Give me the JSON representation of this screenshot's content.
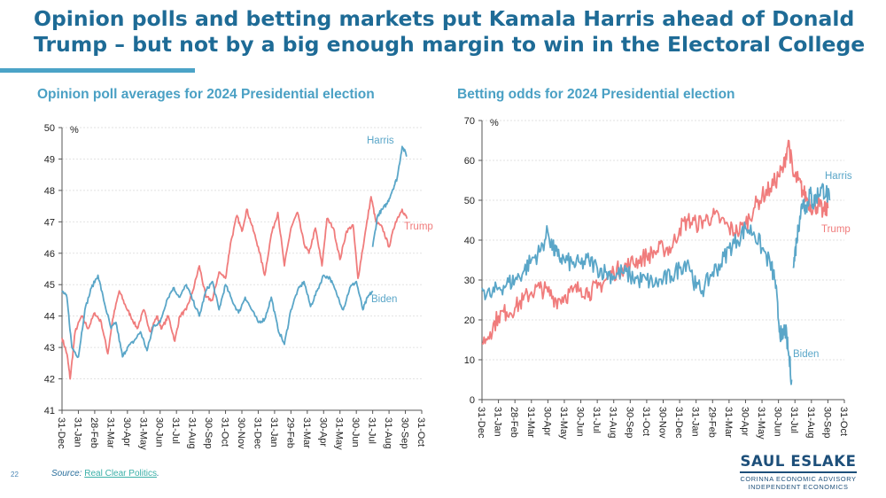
{
  "slide": {
    "title": "Opinion polls and betting markets put Kamala Harris ahead of Donald Trump – but not by a big enough margin to win in the Electoral College",
    "page_number": "22",
    "source_prefix": "Source: ",
    "source_link": "Real Clear Politics",
    "source_suffix": ".",
    "logo": {
      "name": "SAUL ESLAKE",
      "line1": "CORINNA ECONOMIC ADVISORY",
      "line2": "INDEPENDENT ECONOMICS"
    }
  },
  "colors": {
    "trump": "#f07c7c",
    "biden": "#5aa6c8",
    "harris": "#5aa6c8",
    "title": "#1e6b96"
  },
  "chart_data": [
    {
      "type": "line",
      "title": "Opinion poll averages for 2024 Presidential election",
      "unit_label": "%",
      "ylim": [
        41,
        50
      ],
      "yticks": [
        "41",
        "42",
        "43",
        "44",
        "45",
        "46",
        "47",
        "48",
        "49",
        "50"
      ],
      "xticks": [
        "31-Dec",
        "31-Jan",
        "28-Feb",
        "31-Mar",
        "30-Apr",
        "31-May",
        "30-Jun",
        "31-Jul",
        "31-Aug",
        "30-Sep",
        "31-Oct",
        "30-Nov",
        "31-Dec",
        "31-Jan",
        "29-Feb",
        "31-Mar",
        "30-Apr",
        "31-May",
        "30-Jun",
        "31-Jul",
        "31-Aug",
        "30-Sep",
        "31-Oct"
      ],
      "grid": true,
      "series": [
        {
          "name": "Trump",
          "x_index": [
            0,
            0.3,
            0.5,
            0.8,
            1.2,
            1.6,
            2,
            2.4,
            2.8,
            3.1,
            3.5,
            3.9,
            4.2,
            4.6,
            5,
            5.4,
            5.8,
            6.1,
            6.5,
            6.9,
            7.2,
            7.6,
            8,
            8.4,
            8.8,
            9.2,
            9.6,
            10,
            10.3,
            10.7,
            11,
            11.3,
            11.6,
            12,
            12.4,
            12.8,
            13.2,
            13.6,
            14,
            14.4,
            14.8,
            15.1,
            15.5,
            15.9,
            16.2,
            16.6,
            17,
            17.4,
            17.8,
            18.1,
            18.5,
            18.9,
            19.2,
            19.6,
            20,
            20.4,
            20.8,
            21.1
          ],
          "values": [
            43.3,
            42.8,
            42.0,
            43.5,
            44.0,
            43.6,
            44.1,
            43.8,
            42.8,
            43.9,
            44.8,
            44.3,
            44.0,
            43.6,
            44.2,
            43.5,
            44.0,
            43.6,
            44.0,
            43.2,
            44.0,
            44.2,
            44.8,
            45.6,
            44.6,
            44.5,
            45.4,
            45.2,
            46.3,
            47.2,
            46.7,
            47.4,
            46.9,
            46.2,
            45.3,
            46.6,
            47.3,
            45.6,
            46.8,
            47.3,
            46.3,
            46.0,
            46.8,
            45.6,
            47.1,
            46.8,
            45.8,
            46.7,
            46.9,
            45.2,
            46.5,
            47.8,
            47.0,
            46.8,
            46.2,
            47.0,
            47.4,
            47.1
          ]
        },
        {
          "name": "Biden",
          "x_index": [
            0,
            0.3,
            0.6,
            1,
            1.4,
            1.8,
            2.2,
            2.6,
            3,
            3.3,
            3.7,
            4,
            4.4,
            4.8,
            5.2,
            5.6,
            6,
            6.4,
            6.8,
            7.2,
            7.6,
            8,
            8.4,
            8.8,
            9.2,
            9.6,
            10,
            10.4,
            10.8,
            11.2,
            11.6,
            12,
            12.4,
            12.8,
            13.2,
            13.6,
            14,
            14.4,
            14.8,
            15.2,
            15.6,
            16,
            16.4,
            16.8,
            17.2,
            17.6,
            18,
            18.4,
            18.7,
            19
          ],
          "values": [
            44.8,
            44.6,
            43.0,
            42.7,
            44.2,
            44.9,
            45.3,
            44.4,
            43.6,
            43.8,
            42.7,
            43.0,
            43.2,
            43.5,
            42.9,
            43.7,
            43.8,
            44.5,
            44.9,
            44.6,
            45.0,
            44.5,
            44.0,
            44.8,
            45.1,
            44.2,
            45.0,
            44.5,
            44.1,
            44.6,
            44.2,
            43.8,
            43.9,
            44.6,
            43.6,
            43.1,
            44.2,
            44.8,
            45.1,
            44.3,
            44.8,
            45.3,
            45.2,
            44.7,
            44.2,
            44.9,
            45.1,
            44.2,
            44.6,
            44.8
          ]
        },
        {
          "name": "Harris",
          "x_index": [
            19,
            19.3,
            19.6,
            19.9,
            20.2,
            20.5,
            20.8,
            21.1
          ],
          "values": [
            46.2,
            47.2,
            47.4,
            47.6,
            48.0,
            48.4,
            49.4,
            49.1
          ]
        }
      ]
    },
    {
      "type": "line",
      "title": "Betting odds for 2024 Presidential election",
      "unit_label": "%",
      "ylim": [
        0,
        70
      ],
      "yticks": [
        "0",
        "10",
        "20",
        "30",
        "40",
        "50",
        "60",
        "70"
      ],
      "xticks": [
        "31-Dec",
        "31-Jan",
        "28-Feb",
        "31-Mar",
        "30-Apr",
        "31-May",
        "30-Jun",
        "31-Jul",
        "31-Aug",
        "30-Sep",
        "31-Oct",
        "30-Nov",
        "31-Dec",
        "31-Jan",
        "29-Feb",
        "31-Mar",
        "30-Apr",
        "31-May",
        "30-Jun",
        "31-Jul",
        "31-Aug",
        "30-Sep",
        "31-Oct"
      ],
      "grid": true,
      "series": [
        {
          "name": "Trump",
          "x_index": [
            0,
            0.5,
            1,
            1.5,
            2,
            2.5,
            3,
            3.5,
            4,
            4.5,
            5,
            5.5,
            6,
            6.5,
            7,
            7.5,
            8,
            8.5,
            9,
            9.5,
            10,
            10.5,
            11,
            11.5,
            12,
            12.5,
            13,
            13.5,
            14,
            14.5,
            15,
            15.5,
            16,
            16.5,
            17,
            17.5,
            18,
            18.3,
            18.6,
            18.9,
            19.2,
            19.5,
            19.8,
            20.1,
            20.4,
            20.7,
            21
          ],
          "values": [
            14,
            17,
            21,
            22,
            23,
            25,
            27,
            28,
            27,
            25,
            26,
            27,
            28,
            27,
            28,
            30,
            32,
            33,
            34,
            35,
            36,
            37,
            38,
            38,
            43,
            45,
            44,
            45,
            46,
            45,
            43,
            42,
            44,
            48,
            51,
            53,
            56,
            58,
            65,
            56,
            55,
            52,
            50,
            48,
            49,
            47,
            48
          ]
        },
        {
          "name": "Biden",
          "x_index": [
            0,
            0.5,
            1,
            1.5,
            2,
            2.5,
            3,
            3.5,
            4,
            4.3,
            4.6,
            5,
            5.5,
            6,
            6.5,
            7,
            7.5,
            8,
            8.5,
            9,
            9.5,
            10,
            10.5,
            11,
            11.5,
            12,
            12.5,
            13,
            13.5,
            14,
            14.5,
            15,
            15.5,
            16,
            16.5,
            17,
            17.5,
            17.8,
            18,
            18.2,
            18.4,
            18.6,
            18.8
          ],
          "values": [
            28,
            26,
            28,
            29,
            30,
            32,
            35,
            37,
            42,
            38,
            36,
            35,
            34,
            34,
            35,
            33,
            32,
            31,
            32,
            31,
            30,
            30,
            29,
            30,
            31,
            33,
            35,
            28,
            28,
            32,
            34,
            38,
            40,
            43,
            42,
            38,
            34,
            30,
            20,
            15,
            18,
            12,
            5
          ]
        },
        {
          "name": "Harris",
          "x_index": [
            18.9,
            19.1,
            19.3,
            19.5,
            19.7,
            19.9,
            20.1,
            20.3,
            20.6,
            20.9,
            21.1
          ],
          "values": [
            33,
            40,
            46,
            50,
            48,
            52,
            49,
            51,
            53,
            52,
            50
          ]
        }
      ]
    }
  ]
}
